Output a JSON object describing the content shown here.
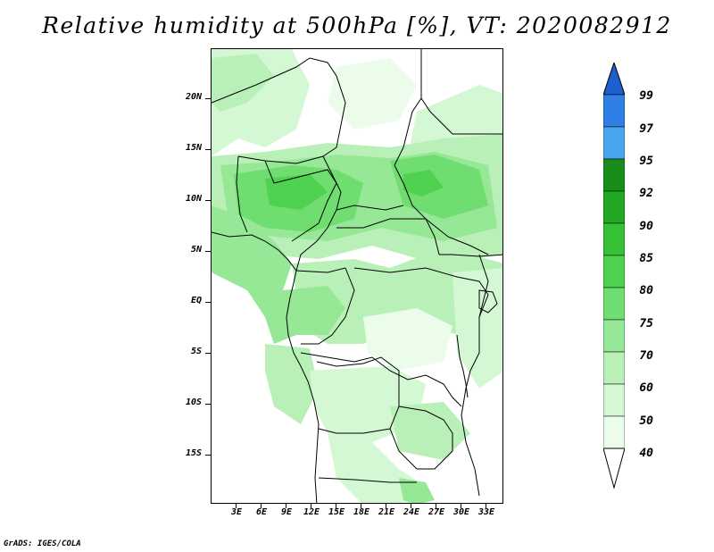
{
  "title": "Relative humidity at 500hPa [%], VT: 2020082912",
  "credit": "GrADS: IGES/COLA",
  "lat_labels": [
    "20N",
    "15N",
    "10N",
    "5N",
    "EQ",
    "5S",
    "10S",
    "15S"
  ],
  "lon_labels": [
    "3E",
    "6E",
    "9E",
    "12E",
    "15E",
    "18E",
    "21E",
    "24E",
    "27E",
    "30E",
    "33E"
  ],
  "colorbar": {
    "labels": [
      "99",
      "97",
      "95",
      "92",
      "90",
      "85",
      "80",
      "75",
      "70",
      "60",
      "50",
      "40"
    ],
    "colors": [
      "#1d5fcf",
      "#2f7fe6",
      "#4aa4f0",
      "#1a8c1a",
      "#22a822",
      "#35c035",
      "#4fd24f",
      "#6fdd6f",
      "#96e796",
      "#b8f0b8",
      "#d4f7d4",
      "#ebfcea"
    ]
  },
  "fill_colors": {
    "light": "#ebfcea",
    "pale": "#d4f7d4",
    "mid": "#b8f0b8",
    "strong": "#96e796",
    "deep": "#6fdd6f",
    "deeper": "#4fd24f"
  }
}
